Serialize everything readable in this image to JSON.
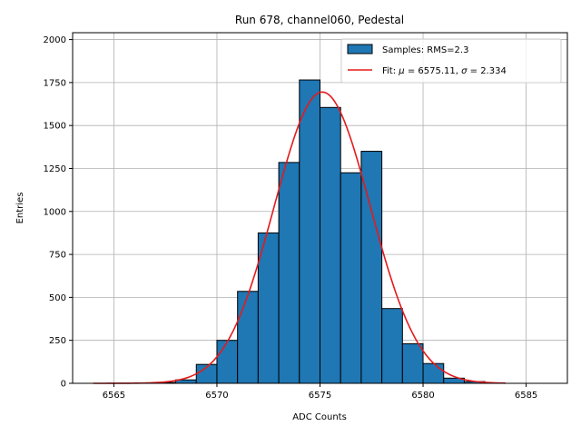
{
  "chart_data": {
    "type": "bar",
    "title": "Run 678, channel060, Pedestal",
    "xlabel": "ADC Counts",
    "ylabel": "Entries",
    "xlim": [
      6563,
      6587
    ],
    "ylim": [
      0,
      2040
    ],
    "grid": true,
    "legend_position": "top-right",
    "x_ticks": [
      6565,
      6570,
      6575,
      6580,
      6585
    ],
    "y_ticks": [
      0,
      250,
      500,
      750,
      1000,
      1250,
      1500,
      1750,
      2000
    ],
    "histogram": {
      "name": "Samples: RMS=2.3",
      "color": "#1f77b4",
      "bin_edges": [
        6564,
        6565,
        6566,
        6567,
        6568,
        6569,
        6570,
        6571,
        6572,
        6573,
        6574,
        6575,
        6576,
        6577,
        6578,
        6579,
        6580,
        6581,
        6582,
        6583,
        6584
      ],
      "values": [
        0,
        0,
        0,
        5,
        20,
        110,
        250,
        535,
        875,
        1285,
        1765,
        1605,
        1225,
        1350,
        435,
        230,
        115,
        30,
        10,
        0
      ]
    },
    "fit": {
      "name_prefix": "Fit: ",
      "name_mu": "μ",
      "name_mid": " = 6575.11, ",
      "name_sigma": "σ",
      "name_suffix": " = 2.334",
      "color": "#e41a1c",
      "mu": 6575.11,
      "sigma": 2.334,
      "amplitude": 1695,
      "x_range": [
        6564,
        6584
      ]
    }
  }
}
